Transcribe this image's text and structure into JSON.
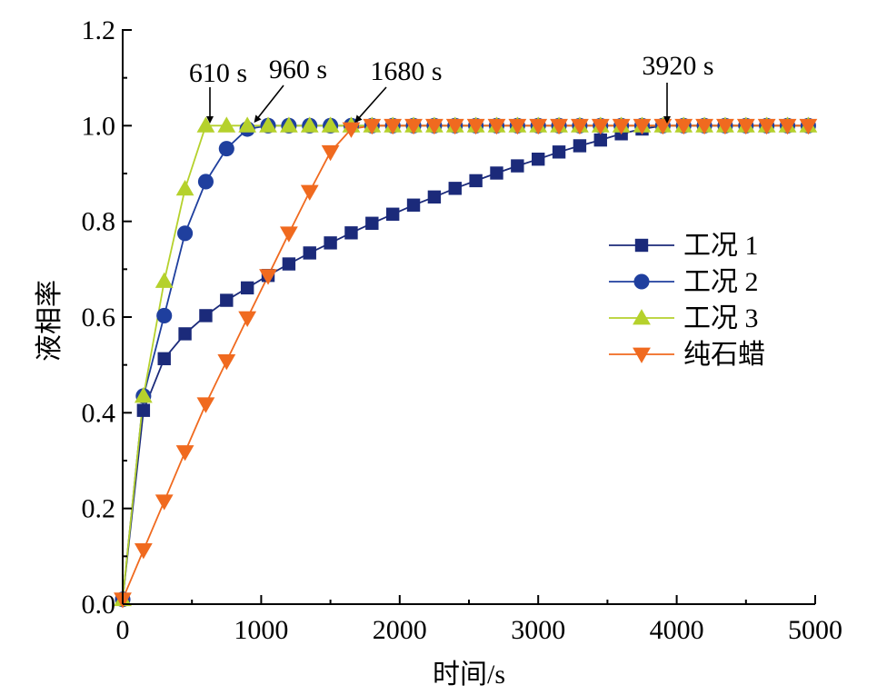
{
  "chart_data": {
    "type": "line",
    "xlabel": "时间/s",
    "ylabel": "液相率",
    "xlim": [
      0,
      5000
    ],
    "ylim": [
      0,
      1.2
    ],
    "xticks": [
      0,
      1000,
      2000,
      3000,
      4000,
      5000
    ],
    "yticks": [
      0.0,
      0.2,
      0.4,
      0.6,
      0.8,
      1.0,
      1.2
    ],
    "xtick_labels": [
      "0",
      "1000",
      "2000",
      "3000",
      "4000",
      "5000"
    ],
    "ytick_labels": [
      "0.0",
      "0.2",
      "0.4",
      "0.6",
      "0.8",
      "1.0",
      "1.2"
    ],
    "grid": false,
    "legend_position": "right",
    "series": [
      {
        "name": "工况 1",
        "color": "#1b2a7a",
        "marker": "square",
        "points": [
          [
            0,
            0.01
          ],
          [
            150,
            0.405
          ],
          [
            300,
            0.513
          ],
          [
            450,
            0.565
          ],
          [
            600,
            0.603
          ],
          [
            750,
            0.635
          ],
          [
            900,
            0.661
          ],
          [
            1050,
            0.687
          ],
          [
            1200,
            0.711
          ],
          [
            1350,
            0.734
          ],
          [
            1500,
            0.755
          ],
          [
            1650,
            0.776
          ],
          [
            1800,
            0.796
          ],
          [
            1950,
            0.815
          ],
          [
            2100,
            0.834
          ],
          [
            2250,
            0.851
          ],
          [
            2400,
            0.869
          ],
          [
            2550,
            0.885
          ],
          [
            2700,
            0.901
          ],
          [
            2850,
            0.916
          ],
          [
            3000,
            0.93
          ],
          [
            3150,
            0.945
          ],
          [
            3300,
            0.958
          ],
          [
            3450,
            0.97
          ],
          [
            3600,
            0.983
          ],
          [
            3750,
            0.993
          ],
          [
            3900,
            1.0
          ],
          [
            4050,
            1.0
          ],
          [
            4200,
            1.0
          ],
          [
            4350,
            1.0
          ],
          [
            4500,
            1.0
          ],
          [
            4650,
            1.0
          ],
          [
            4800,
            1.0
          ],
          [
            4950,
            1.0
          ]
        ]
      },
      {
        "name": "工况 2",
        "color": "#1f3f9e",
        "marker": "circle",
        "points": [
          [
            0,
            0.01
          ],
          [
            150,
            0.435
          ],
          [
            300,
            0.603
          ],
          [
            450,
            0.775
          ],
          [
            600,
            0.883
          ],
          [
            750,
            0.952
          ],
          [
            900,
            0.993
          ],
          [
            1050,
            1.0
          ],
          [
            1200,
            1.0
          ],
          [
            1350,
            1.0
          ],
          [
            1500,
            1.0
          ],
          [
            1650,
            1.0
          ],
          [
            1800,
            1.0
          ],
          [
            1950,
            1.0
          ],
          [
            2100,
            1.0
          ],
          [
            2250,
            1.0
          ],
          [
            2400,
            1.0
          ],
          [
            2550,
            1.0
          ],
          [
            2700,
            1.0
          ],
          [
            2850,
            1.0
          ],
          [
            3000,
            1.0
          ],
          [
            3150,
            1.0
          ],
          [
            3300,
            1.0
          ],
          [
            3450,
            1.0
          ],
          [
            3600,
            1.0
          ],
          [
            3750,
            1.0
          ],
          [
            3900,
            1.0
          ],
          [
            4050,
            1.0
          ],
          [
            4200,
            1.0
          ],
          [
            4350,
            1.0
          ],
          [
            4500,
            1.0
          ],
          [
            4650,
            1.0
          ],
          [
            4800,
            1.0
          ],
          [
            4950,
            1.0
          ]
        ]
      },
      {
        "name": "工况 3",
        "color": "#b5d12c",
        "marker": "triangle-up",
        "points": [
          [
            0,
            0.01
          ],
          [
            150,
            0.435
          ],
          [
            300,
            0.675
          ],
          [
            450,
            0.868
          ],
          [
            600,
            1.0
          ],
          [
            750,
            1.0
          ],
          [
            900,
            1.0
          ],
          [
            1050,
            1.0
          ],
          [
            1200,
            1.0
          ],
          [
            1350,
            1.0
          ],
          [
            1500,
            1.0
          ],
          [
            1650,
            1.0
          ],
          [
            1800,
            1.0
          ],
          [
            1950,
            1.0
          ],
          [
            2100,
            1.0
          ],
          [
            2250,
            1.0
          ],
          [
            2400,
            1.0
          ],
          [
            2550,
            1.0
          ],
          [
            2700,
            1.0
          ],
          [
            2850,
            1.0
          ],
          [
            3000,
            1.0
          ],
          [
            3150,
            1.0
          ],
          [
            3300,
            1.0
          ],
          [
            3450,
            1.0
          ],
          [
            3600,
            1.0
          ],
          [
            3750,
            1.0
          ],
          [
            3900,
            1.0
          ],
          [
            4050,
            1.0
          ],
          [
            4200,
            1.0
          ],
          [
            4350,
            1.0
          ],
          [
            4500,
            1.0
          ],
          [
            4650,
            1.0
          ],
          [
            4800,
            1.0
          ],
          [
            4950,
            1.0
          ]
        ]
      },
      {
        "name": "纯石蜡",
        "color": "#f06a1f",
        "marker": "triangle-down",
        "points": [
          [
            0,
            0.01
          ],
          [
            150,
            0.113
          ],
          [
            300,
            0.215
          ],
          [
            450,
            0.318
          ],
          [
            600,
            0.418
          ],
          [
            750,
            0.508
          ],
          [
            900,
            0.598
          ],
          [
            1050,
            0.686
          ],
          [
            1200,
            0.775
          ],
          [
            1350,
            0.862
          ],
          [
            1500,
            0.945
          ],
          [
            1650,
            0.993
          ],
          [
            1800,
            1.0
          ],
          [
            1950,
            1.0
          ],
          [
            2100,
            1.0
          ],
          [
            2250,
            1.0
          ],
          [
            2400,
            1.0
          ],
          [
            2550,
            1.0
          ],
          [
            2700,
            1.0
          ],
          [
            2850,
            1.0
          ],
          [
            3000,
            1.0
          ],
          [
            3150,
            1.0
          ],
          [
            3300,
            1.0
          ],
          [
            3450,
            1.0
          ],
          [
            3600,
            1.0
          ],
          [
            3750,
            1.0
          ],
          [
            3900,
            1.0
          ],
          [
            4050,
            1.0
          ],
          [
            4200,
            1.0
          ],
          [
            4350,
            1.0
          ],
          [
            4500,
            1.0
          ],
          [
            4650,
            1.0
          ],
          [
            4800,
            1.0
          ],
          [
            4950,
            1.0
          ]
        ]
      }
    ],
    "annotations": [
      {
        "text": "610 s",
        "x": 610,
        "y": 1.0
      },
      {
        "text": "960 s",
        "x": 960,
        "y": 1.0
      },
      {
        "text": "1680 s",
        "x": 1680,
        "y": 1.0
      },
      {
        "text": "3920 s",
        "x": 3920,
        "y": 1.0
      }
    ]
  }
}
